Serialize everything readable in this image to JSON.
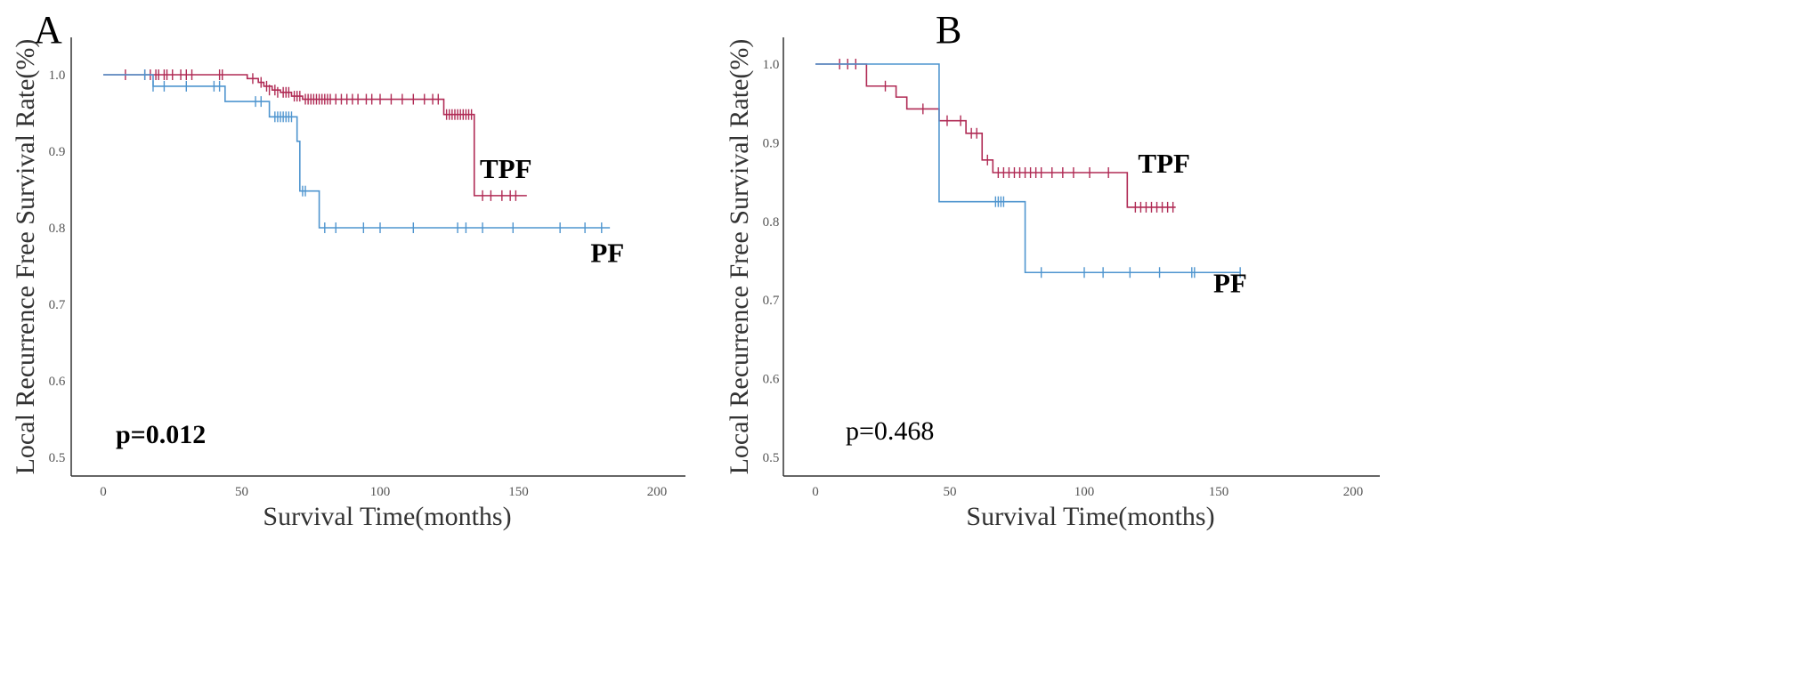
{
  "colors": {
    "TPF": "#b02b55",
    "PF": "#4f95cf",
    "axis": "#333333"
  },
  "chart_data": [
    {
      "panel_label": "A",
      "type": "line",
      "subtype": "kaplan-meier",
      "xlabel": "Survival Time(months)",
      "ylabel": "Local Recurrence Free Survival Rate(%)",
      "xlim": [
        0,
        200
      ],
      "ylim": [
        0.5,
        1.0
      ],
      "x_ticks": [
        "0",
        "50",
        "100",
        "150",
        "200"
      ],
      "y_ticks": [
        "0.5",
        "0.6",
        "0.7",
        "0.8",
        "0.9",
        "1.0"
      ],
      "annotation": "p=0.012",
      "annotation_bold": true,
      "series": [
        {
          "name": "TPF",
          "label_pos": [
            136,
            0.865
          ],
          "steps": [
            [
              0,
              1.0
            ],
            [
              52,
              0.995
            ],
            [
              56,
              0.99
            ],
            [
              58,
              0.985
            ],
            [
              61,
              0.98
            ],
            [
              64,
              0.977
            ],
            [
              68,
              0.972
            ],
            [
              72,
              0.968
            ],
            [
              123,
              0.948
            ],
            [
              134,
              0.842
            ],
            [
              153,
              0.842
            ]
          ],
          "censored": [
            [
              8,
              1.0
            ],
            [
              15,
              1.0
            ],
            [
              17,
              1.0
            ],
            [
              19,
              1.0
            ],
            [
              20,
              1.0
            ],
            [
              22,
              1.0
            ],
            [
              23,
              1.0
            ],
            [
              25,
              1.0
            ],
            [
              28,
              1.0
            ],
            [
              30,
              1.0
            ],
            [
              32,
              1.0
            ],
            [
              42,
              1.0
            ],
            [
              43,
              1.0
            ],
            [
              54,
              0.995
            ],
            [
              57,
              0.99
            ],
            [
              59,
              0.985
            ],
            [
              60,
              0.98
            ],
            [
              62,
              0.98
            ],
            [
              63,
              0.977
            ],
            [
              65,
              0.977
            ],
            [
              66,
              0.977
            ],
            [
              67,
              0.977
            ],
            [
              69,
              0.972
            ],
            [
              70,
              0.972
            ],
            [
              71,
              0.972
            ],
            [
              73,
              0.968
            ],
            [
              74,
              0.968
            ],
            [
              75,
              0.968
            ],
            [
              76,
              0.968
            ],
            [
              77,
              0.968
            ],
            [
              78,
              0.968
            ],
            [
              79,
              0.968
            ],
            [
              80,
              0.968
            ],
            [
              81,
              0.968
            ],
            [
              82,
              0.968
            ],
            [
              84,
              0.968
            ],
            [
              86,
              0.968
            ],
            [
              88,
              0.968
            ],
            [
              90,
              0.968
            ],
            [
              92,
              0.968
            ],
            [
              95,
              0.968
            ],
            [
              97,
              0.968
            ],
            [
              100,
              0.968
            ],
            [
              104,
              0.968
            ],
            [
              108,
              0.968
            ],
            [
              112,
              0.968
            ],
            [
              116,
              0.968
            ],
            [
              119,
              0.968
            ],
            [
              121,
              0.968
            ],
            [
              124,
              0.948
            ],
            [
              125,
              0.948
            ],
            [
              126,
              0.948
            ],
            [
              127,
              0.948
            ],
            [
              128,
              0.948
            ],
            [
              129,
              0.948
            ],
            [
              130,
              0.948
            ],
            [
              131,
              0.948
            ],
            [
              132,
              0.948
            ],
            [
              133,
              0.948
            ],
            [
              137,
              0.842
            ],
            [
              140,
              0.842
            ],
            [
              144,
              0.842
            ],
            [
              147,
              0.842
            ],
            [
              149,
              0.842
            ]
          ]
        },
        {
          "name": "PF",
          "label_pos": [
            176,
            0.755
          ],
          "steps": [
            [
              0,
              1.0
            ],
            [
              18,
              0.985
            ],
            [
              44,
              0.965
            ],
            [
              60,
              0.945
            ],
            [
              70,
              0.913
            ],
            [
              71,
              0.848
            ],
            [
              78,
              0.8
            ],
            [
              183,
              0.8
            ]
          ],
          "censored": [
            [
              15,
              1.0
            ],
            [
              18,
              0.985
            ],
            [
              22,
              0.985
            ],
            [
              30,
              0.985
            ],
            [
              40,
              0.985
            ],
            [
              42,
              0.985
            ],
            [
              55,
              0.965
            ],
            [
              57,
              0.965
            ],
            [
              62,
              0.945
            ],
            [
              63,
              0.945
            ],
            [
              64,
              0.945
            ],
            [
              65,
              0.945
            ],
            [
              66,
              0.945
            ],
            [
              67,
              0.945
            ],
            [
              68,
              0.945
            ],
            [
              72,
              0.848
            ],
            [
              73,
              0.848
            ],
            [
              80,
              0.8
            ],
            [
              84,
              0.8
            ],
            [
              94,
              0.8
            ],
            [
              100,
              0.8
            ],
            [
              112,
              0.8
            ],
            [
              128,
              0.8
            ],
            [
              131,
              0.8
            ],
            [
              137,
              0.8
            ],
            [
              148,
              0.8
            ],
            [
              165,
              0.8
            ],
            [
              174,
              0.8
            ],
            [
              180,
              0.8
            ]
          ]
        }
      ]
    },
    {
      "panel_label": "B",
      "type": "line",
      "subtype": "kaplan-meier",
      "xlabel": "Survival Time(months)",
      "ylabel": "Local Recurrence Free Survival Rate(%)",
      "xlim": [
        0,
        200
      ],
      "ylim": [
        0.5,
        1.0
      ],
      "x_ticks": [
        "0",
        "50",
        "100",
        "150",
        "200"
      ],
      "y_ticks": [
        "0.5",
        "0.6",
        "0.7",
        "0.8",
        "0.9",
        "1.0"
      ],
      "annotation": "p=0.468",
      "annotation_bold": false,
      "series": [
        {
          "name": "TPF",
          "label_pos": [
            120,
            0.862
          ],
          "steps": [
            [
              0,
              1.0
            ],
            [
              19,
              0.972
            ],
            [
              30,
              0.958
            ],
            [
              34,
              0.943
            ],
            [
              46,
              0.928
            ],
            [
              56,
              0.912
            ],
            [
              62,
              0.878
            ],
            [
              66,
              0.862
            ],
            [
              116,
              0.818
            ],
            [
              134,
              0.818
            ]
          ],
          "censored": [
            [
              9,
              1.0
            ],
            [
              12,
              1.0
            ],
            [
              15,
              1.0
            ],
            [
              26,
              0.972
            ],
            [
              40,
              0.943
            ],
            [
              49,
              0.928
            ],
            [
              54,
              0.928
            ],
            [
              58,
              0.912
            ],
            [
              60,
              0.912
            ],
            [
              64,
              0.878
            ],
            [
              68,
              0.862
            ],
            [
              70,
              0.862
            ],
            [
              72,
              0.862
            ],
            [
              74,
              0.862
            ],
            [
              76,
              0.862
            ],
            [
              78,
              0.862
            ],
            [
              80,
              0.862
            ],
            [
              82,
              0.862
            ],
            [
              84,
              0.862
            ],
            [
              88,
              0.862
            ],
            [
              92,
              0.862
            ],
            [
              96,
              0.862
            ],
            [
              102,
              0.862
            ],
            [
              109,
              0.862
            ],
            [
              119,
              0.818
            ],
            [
              121,
              0.818
            ],
            [
              123,
              0.818
            ],
            [
              125,
              0.818
            ],
            [
              127,
              0.818
            ],
            [
              129,
              0.818
            ],
            [
              131,
              0.818
            ],
            [
              133,
              0.818
            ]
          ]
        },
        {
          "name": "PF",
          "label_pos": [
            148,
            0.71
          ],
          "steps": [
            [
              0,
              1.0
            ],
            [
              46,
              0.825
            ],
            [
              78,
              0.735
            ],
            [
              158,
              0.735
            ]
          ],
          "censored": [
            [
              67,
              0.825
            ],
            [
              68,
              0.825
            ],
            [
              69,
              0.825
            ],
            [
              70,
              0.825
            ],
            [
              84,
              0.735
            ],
            [
              100,
              0.735
            ],
            [
              107,
              0.735
            ],
            [
              117,
              0.735
            ],
            [
              128,
              0.735
            ],
            [
              140,
              0.735
            ],
            [
              141,
              0.735
            ],
            [
              158,
              0.735
            ]
          ]
        }
      ]
    }
  ]
}
